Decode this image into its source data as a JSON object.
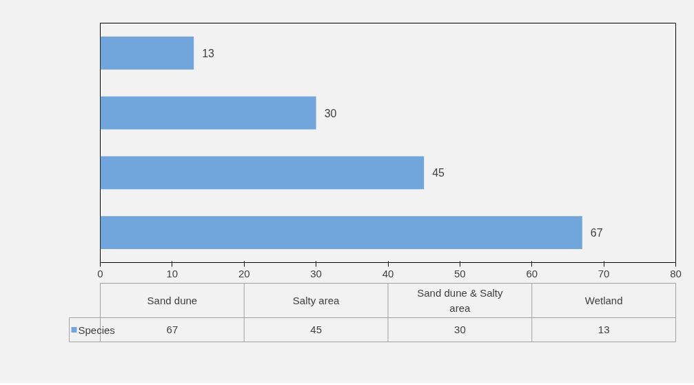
{
  "chart_data": [
    {
      "type": "bar",
      "orientation": "horizontal",
      "categories": [
        null,
        null,
        null,
        null
      ],
      "series": [
        {
          "color": "#70a6dc",
          "values": [
            13,
            30,
            45,
            67
          ]
        }
      ],
      "xlim": [
        0,
        80
      ],
      "xticks": [
        0,
        10,
        20,
        30,
        40,
        50,
        60,
        70,
        80
      ],
      "grid": false,
      "data_labels": true,
      "tick_labels": "x"
    },
    {
      "type": "other",
      "categories": [
        "Sand dune",
        "Salty area",
        "Sand dune & Salty area",
        "Wetland"
      ],
      "series": [
        {
          "name": "Species",
          "color": "#70a6dc",
          "values": [
            67,
            45,
            30,
            13
          ]
        }
      ],
      "data_labels": true
    }
  ]
}
